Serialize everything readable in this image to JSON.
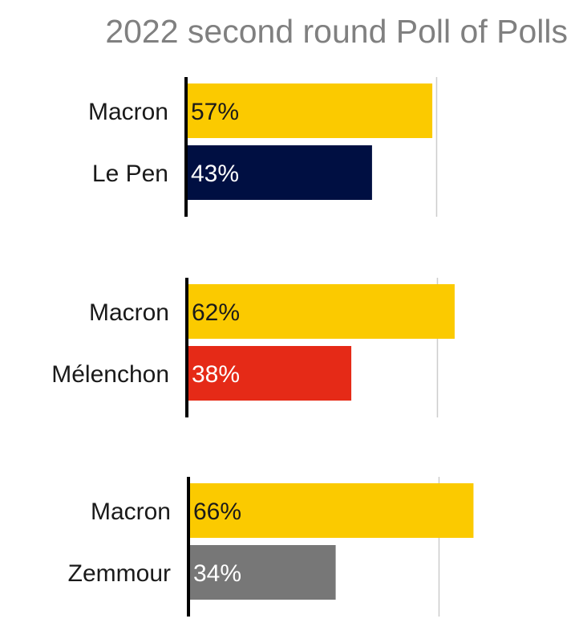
{
  "chart_data": {
    "type": "bar",
    "title": "2022 second round Poll of Polls",
    "unit": "%",
    "xlim": [
      0,
      100
    ],
    "grid": true,
    "matchups": [
      {
        "bars": [
          {
            "candidate": "Macron",
            "value": 57,
            "label": "57%",
            "color": "#fbca00",
            "label_color": "#1a1a1a"
          },
          {
            "candidate": "Le Pen",
            "value": 43,
            "label": "43%",
            "color": "#000f42",
            "label_color": "#ffffff"
          }
        ]
      },
      {
        "bars": [
          {
            "candidate": "Macron",
            "value": 62,
            "label": "62%",
            "color": "#fbca00",
            "label_color": "#1a1a1a"
          },
          {
            "candidate": "Mélenchon",
            "value": 38,
            "label": "38%",
            "color": "#e52a17",
            "label_color": "#ffffff"
          }
        ]
      },
      {
        "bars": [
          {
            "candidate": "Macron",
            "value": 66,
            "label": "66%",
            "color": "#fbca00",
            "label_color": "#1a1a1a"
          },
          {
            "candidate": "Zemmour",
            "value": 34,
            "label": "34%",
            "color": "#777777",
            "label_color": "#ffffff"
          }
        ]
      }
    ]
  }
}
